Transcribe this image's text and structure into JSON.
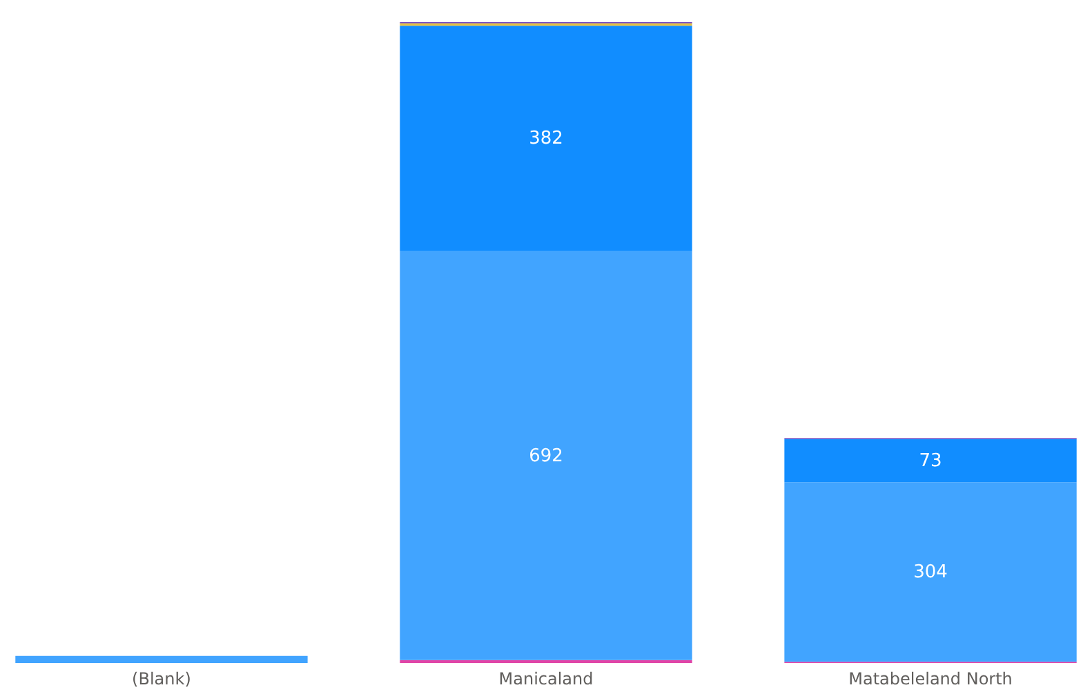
{
  "chart_data": {
    "type": "bar",
    "stacked": true,
    "categories": [
      "(Blank)",
      "Manicaland",
      "Matabeleland North"
    ],
    "series": [
      {
        "color": "#e044a7",
        "values": [
          null,
          5,
          2
        ]
      },
      {
        "color": "#41a4ff",
        "values": [
          12,
          692,
          304
        ],
        "value_labels": [
          null,
          "692",
          "304"
        ]
      },
      {
        "color": "#118dff",
        "values": [
          null,
          382,
          73
        ],
        "value_labels": [
          null,
          "382",
          "73"
        ]
      },
      {
        "color": "#e6c13e",
        "values": [
          null,
          4,
          null
        ]
      },
      {
        "color": "#744ec2",
        "values": [
          null,
          2,
          2
        ]
      }
    ],
    "grid": false,
    "tick_labels": "x"
  }
}
